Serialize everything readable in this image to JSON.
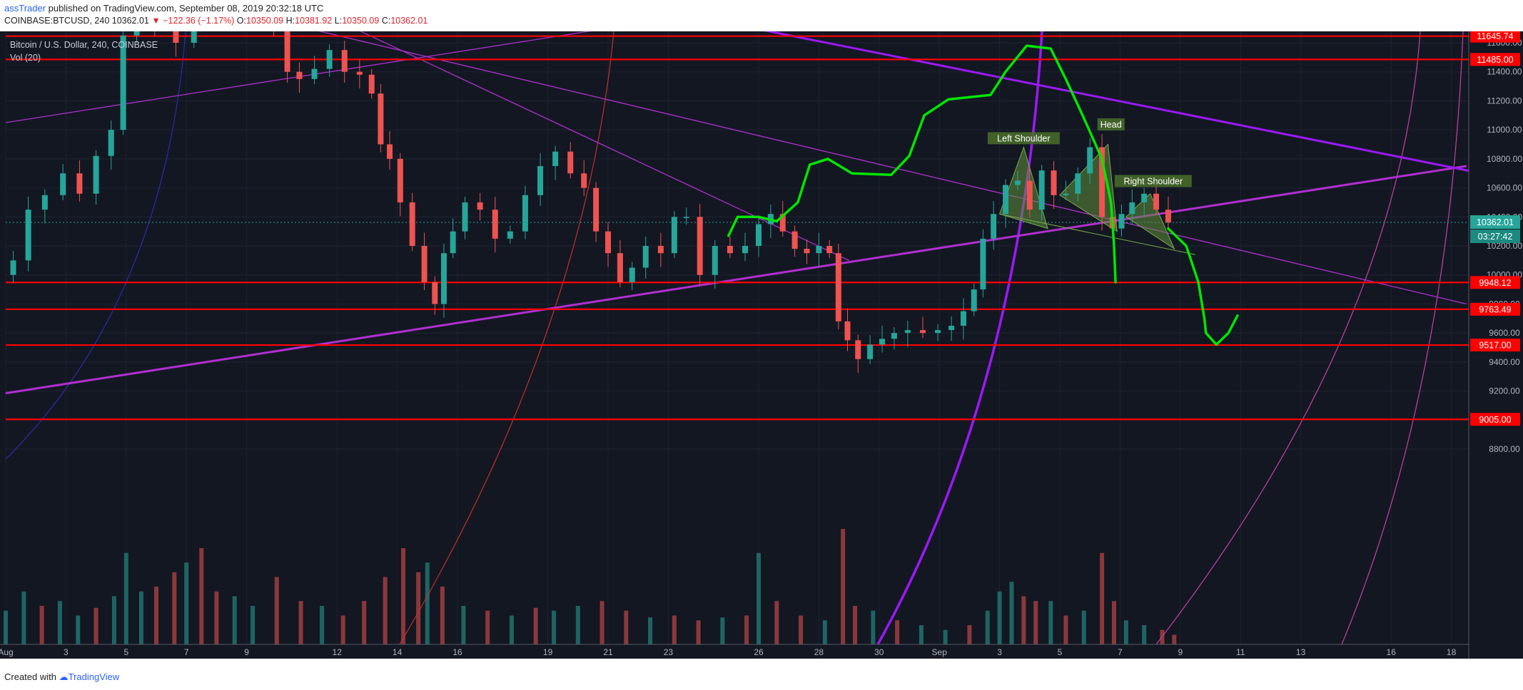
{
  "header": {
    "author": "assTrader",
    "published_text": "published on TradingView.com, September 08, 2019 20:32:18 UTC",
    "symbol_line": "COINBASE:BTCUSD, 240",
    "last": "10362.01",
    "change": "−122.36 (−1.17%)",
    "open_label": "O:",
    "open": "10350.09",
    "high_label": "H:",
    "high": "10381.92",
    "low_label": "L:",
    "low": "10350.09",
    "close_label": "C:",
    "close": "10362.01"
  },
  "legend": {
    "title": "Bitcoin / U.S. Dollar, 240, COINBASE",
    "volume": "Vol (20)"
  },
  "footer": {
    "created_with": "Created with",
    "brand": "TradingView"
  },
  "colors": {
    "background": "#131722",
    "up": "#26a69a",
    "down": "#ef5350",
    "support_line": "#ff0000",
    "trend_line": "#b02fd0",
    "arc": "#9b19f5",
    "sketch": "#00e600",
    "pattern_fill": "#5e8f3a"
  },
  "chart_data": {
    "type": "candlestick",
    "title": "Bitcoin / U.S. Dollar, 240, COINBASE",
    "x_ticks": [
      "Aug",
      "3",
      "5",
      "7",
      "9",
      "12",
      "14",
      "16",
      "19",
      "21",
      "23",
      "26",
      "28",
      "30",
      "Sep",
      "3",
      "5",
      "7",
      "9",
      "11",
      "13",
      "16",
      "18"
    ],
    "x_tick_days": [
      1,
      3,
      5,
      7,
      9,
      12,
      14,
      16,
      19,
      21,
      23,
      26,
      28,
      30,
      32,
      34,
      36,
      38,
      40,
      42,
      44,
      47,
      49
    ],
    "y_ticks": [
      8800,
      9000,
      9200,
      9400,
      9600,
      9800,
      10000,
      10200,
      10400,
      10600,
      10800,
      11000,
      11200,
      11400,
      11600
    ],
    "ylim": [
      8640,
      11640
    ],
    "current_price": {
      "value": 10362.01,
      "label": "10362.01",
      "countdown": "03:27:42"
    },
    "horizontal_levels": [
      {
        "value": 11645.74,
        "label": "11645.74"
      },
      {
        "value": 11485.0,
        "label": "11485.00"
      },
      {
        "value": 9948.12,
        "label": "9948.12"
      },
      {
        "value": 9763.49,
        "label": "9763.49"
      },
      {
        "value": 9517.0,
        "label": "9517.00"
      },
      {
        "value": 9005.0,
        "label": "9005.00"
      }
    ],
    "price_path": [
      {
        "d": 1.0,
        "p": 10000
      },
      {
        "d": 1.5,
        "p": 10100
      },
      {
        "d": 2.0,
        "p": 10450
      },
      {
        "d": 2.6,
        "p": 10550
      },
      {
        "d": 3.2,
        "p": 10700
      },
      {
        "d": 3.7,
        "p": 10560
      },
      {
        "d": 4.3,
        "p": 10820
      },
      {
        "d": 4.7,
        "p": 11000
      },
      {
        "d": 5.1,
        "p": 11650
      },
      {
        "d": 5.6,
        "p": 11900
      },
      {
        "d": 6.3,
        "p": 11720
      },
      {
        "d": 7.0,
        "p": 11600
      },
      {
        "d": 7.5,
        "p": 11950
      },
      {
        "d": 8.0,
        "p": 11800
      },
      {
        "d": 8.6,
        "p": 11950
      },
      {
        "d": 9.1,
        "p": 11900
      },
      {
        "d": 9.6,
        "p": 11960
      },
      {
        "d": 10.2,
        "p": 11700
      },
      {
        "d": 10.5,
        "p": 11400
      },
      {
        "d": 11.0,
        "p": 11350
      },
      {
        "d": 11.5,
        "p": 11420
      },
      {
        "d": 12.0,
        "p": 11550
      },
      {
        "d": 12.5,
        "p": 11400
      },
      {
        "d": 13.0,
        "p": 11380
      },
      {
        "d": 13.3,
        "p": 11250
      },
      {
        "d": 13.6,
        "p": 10900
      },
      {
        "d": 13.9,
        "p": 10800
      },
      {
        "d": 14.3,
        "p": 10500
      },
      {
        "d": 14.7,
        "p": 10200
      },
      {
        "d": 15.1,
        "p": 9950
      },
      {
        "d": 15.4,
        "p": 9800
      },
      {
        "d": 15.7,
        "p": 10150
      },
      {
        "d": 16.0,
        "p": 10300
      },
      {
        "d": 16.5,
        "p": 10500
      },
      {
        "d": 17.0,
        "p": 10450
      },
      {
        "d": 17.5,
        "p": 10250
      },
      {
        "d": 18.0,
        "p": 10300
      },
      {
        "d": 18.5,
        "p": 10550
      },
      {
        "d": 19.0,
        "p": 10750
      },
      {
        "d": 19.5,
        "p": 10850
      },
      {
        "d": 20.0,
        "p": 10700
      },
      {
        "d": 20.4,
        "p": 10600
      },
      {
        "d": 20.8,
        "p": 10300
      },
      {
        "d": 21.2,
        "p": 10150
      },
      {
        "d": 21.6,
        "p": 9950
      },
      {
        "d": 22.0,
        "p": 10050
      },
      {
        "d": 22.5,
        "p": 10200
      },
      {
        "d": 23.0,
        "p": 10150
      },
      {
        "d": 23.4,
        "p": 10400
      },
      {
        "d": 23.8,
        "p": 10400
      },
      {
        "d": 24.3,
        "p": 10000
      },
      {
        "d": 24.8,
        "p": 10200
      },
      {
        "d": 25.3,
        "p": 10150
      },
      {
        "d": 25.8,
        "p": 10200
      },
      {
        "d": 26.2,
        "p": 10350
      },
      {
        "d": 26.6,
        "p": 10420
      },
      {
        "d": 27.0,
        "p": 10300
      },
      {
        "d": 27.4,
        "p": 10180
      },
      {
        "d": 27.8,
        "p": 10150
      },
      {
        "d": 28.2,
        "p": 10200
      },
      {
        "d": 28.5,
        "p": 10150
      },
      {
        "d": 28.8,
        "p": 9680
      },
      {
        "d": 29.1,
        "p": 9550
      },
      {
        "d": 29.5,
        "p": 9420
      },
      {
        "d": 29.9,
        "p": 9520
      },
      {
        "d": 30.3,
        "p": 9560
      },
      {
        "d": 30.7,
        "p": 9600
      },
      {
        "d": 31.2,
        "p": 9620
      },
      {
        "d": 31.7,
        "p": 9600
      },
      {
        "d": 32.2,
        "p": 9620
      },
      {
        "d": 32.6,
        "p": 9650
      },
      {
        "d": 33.0,
        "p": 9750
      },
      {
        "d": 33.3,
        "p": 9900
      },
      {
        "d": 33.6,
        "p": 10250
      },
      {
        "d": 34.0,
        "p": 10420
      },
      {
        "d": 34.4,
        "p": 10620
      },
      {
        "d": 34.8,
        "p": 10650
      },
      {
        "d": 35.2,
        "p": 10450
      },
      {
        "d": 35.6,
        "p": 10720
      },
      {
        "d": 36.0,
        "p": 10550
      },
      {
        "d": 36.4,
        "p": 10560
      },
      {
        "d": 36.8,
        "p": 10700
      },
      {
        "d": 37.2,
        "p": 10880
      },
      {
        "d": 37.6,
        "p": 10400
      },
      {
        "d": 37.9,
        "p": 10320
      },
      {
        "d": 38.2,
        "p": 10420
      },
      {
        "d": 38.6,
        "p": 10500
      },
      {
        "d": 39.0,
        "p": 10560
      },
      {
        "d": 39.4,
        "p": 10450
      },
      {
        "d": 39.8,
        "p": 10362
      }
    ],
    "trend_lines": [
      {
        "from": {
          "d": 1.0,
          "p": 9185
        },
        "to": {
          "d": 49.5,
          "p": 10750
        }
      },
      {
        "from": {
          "d": 1.0,
          "p": 11050
        },
        "to": {
          "d": 21.0,
          "p": 11700
        }
      },
      {
        "from": {
          "d": 10.0,
          "p": 11750
        },
        "to": {
          "d": 49.5,
          "p": 9800
        }
      },
      {
        "from": {
          "d": 10.0,
          "p": 11950
        },
        "to": {
          "d": 29.0,
          "p": 10100
        }
      },
      {
        "from": {
          "d": 21.0,
          "p": 11900
        },
        "to": {
          "d": 50.5,
          "p": 10680
        }
      }
    ],
    "annotations": [
      {
        "text": "Left Shoulder",
        "d": 34.8,
        "p": 10935
      },
      {
        "text": "Head",
        "d": 37.7,
        "p": 11030
      },
      {
        "text": "Right Shoulder",
        "d": 39.1,
        "p": 10640
      }
    ],
    "projection_path": [
      {
        "d": 25.0,
        "p": 10270
      },
      {
        "d": 25.3,
        "p": 10400
      },
      {
        "d": 26.0,
        "p": 10400
      },
      {
        "d": 26.6,
        "p": 10370
      },
      {
        "d": 27.3,
        "p": 10500
      },
      {
        "d": 27.7,
        "p": 10760
      },
      {
        "d": 28.3,
        "p": 10800
      },
      {
        "d": 29.1,
        "p": 10700
      },
      {
        "d": 30.4,
        "p": 10690
      },
      {
        "d": 31.0,
        "p": 10820
      },
      {
        "d": 31.5,
        "p": 11100
      },
      {
        "d": 32.3,
        "p": 11210
      },
      {
        "d": 33.7,
        "p": 11240
      },
      {
        "d": 34.2,
        "p": 11400
      },
      {
        "d": 34.9,
        "p": 11580
      },
      {
        "d": 35.7,
        "p": 11560
      },
      {
        "d": 36.2,
        "p": 11350
      },
      {
        "d": 36.8,
        "p": 11080
      },
      {
        "d": 37.4,
        "p": 10800
      },
      {
        "d": 37.7,
        "p": 10500
      },
      {
        "d": 37.8,
        "p": 10200
      },
      {
        "d": 37.85,
        "p": 9950
      }
    ],
    "projection_path_2": [
      {
        "d": 39.6,
        "p": 10320
      },
      {
        "d": 40.2,
        "p": 10200
      },
      {
        "d": 40.6,
        "p": 9950
      },
      {
        "d": 40.8,
        "p": 9700
      },
      {
        "d": 40.85,
        "p": 9600
      },
      {
        "d": 41.2,
        "p": 9520
      },
      {
        "d": 41.6,
        "p": 9600
      },
      {
        "d": 41.9,
        "p": 9720
      }
    ],
    "volume": [
      {
        "d": 1.0,
        "v": 35,
        "up": true
      },
      {
        "d": 1.6,
        "v": 55,
        "up": true
      },
      {
        "d": 2.2,
        "v": 40,
        "up": false
      },
      {
        "d": 2.8,
        "v": 45,
        "up": true
      },
      {
        "d": 3.4,
        "v": 30,
        "up": true
      },
      {
        "d": 4.0,
        "v": 38,
        "up": false
      },
      {
        "d": 4.6,
        "v": 50,
        "up": true
      },
      {
        "d": 5.0,
        "v": 95,
        "up": true
      },
      {
        "d": 5.5,
        "v": 55,
        "up": true
      },
      {
        "d": 6.0,
        "v": 60,
        "up": false
      },
      {
        "d": 6.6,
        "v": 75,
        "up": false
      },
      {
        "d": 7.0,
        "v": 85,
        "up": true
      },
      {
        "d": 7.5,
        "v": 100,
        "up": false
      },
      {
        "d": 8.0,
        "v": 55,
        "up": false
      },
      {
        "d": 8.6,
        "v": 50,
        "up": true
      },
      {
        "d": 9.2,
        "v": 40,
        "up": true
      },
      {
        "d": 10.0,
        "v": 70,
        "up": false
      },
      {
        "d": 10.8,
        "v": 45,
        "up": false
      },
      {
        "d": 11.5,
        "v": 40,
        "up": true
      },
      {
        "d": 12.2,
        "v": 30,
        "up": false
      },
      {
        "d": 12.9,
        "v": 45,
        "up": false
      },
      {
        "d": 13.6,
        "v": 70,
        "up": false
      },
      {
        "d": 14.2,
        "v": 100,
        "up": false
      },
      {
        "d": 14.7,
        "v": 75,
        "up": false
      },
      {
        "d": 15.0,
        "v": 85,
        "up": true
      },
      {
        "d": 15.5,
        "v": 60,
        "up": false
      },
      {
        "d": 16.2,
        "v": 40,
        "up": true
      },
      {
        "d": 17.0,
        "v": 35,
        "up": false
      },
      {
        "d": 17.8,
        "v": 30,
        "up": true
      },
      {
        "d": 18.6,
        "v": 38,
        "up": false
      },
      {
        "d": 19.2,
        "v": 35,
        "up": true
      },
      {
        "d": 20.0,
        "v": 40,
        "up": true
      },
      {
        "d": 20.8,
        "v": 45,
        "up": false
      },
      {
        "d": 21.6,
        "v": 35,
        "up": false
      },
      {
        "d": 22.4,
        "v": 28,
        "up": true
      },
      {
        "d": 23.2,
        "v": 30,
        "up": false
      },
      {
        "d": 24.0,
        "v": 25,
        "up": false
      },
      {
        "d": 24.8,
        "v": 28,
        "up": true
      },
      {
        "d": 25.6,
        "v": 30,
        "up": false
      },
      {
        "d": 26.0,
        "v": 95,
        "up": true
      },
      {
        "d": 26.6,
        "v": 45,
        "up": false
      },
      {
        "d": 27.4,
        "v": 30,
        "up": false
      },
      {
        "d": 28.2,
        "v": 25,
        "up": true
      },
      {
        "d": 28.8,
        "v": 120,
        "up": false
      },
      {
        "d": 29.2,
        "v": 40,
        "up": false
      },
      {
        "d": 29.8,
        "v": 35,
        "up": true
      },
      {
        "d": 30.6,
        "v": 25,
        "up": false
      },
      {
        "d": 31.4,
        "v": 20,
        "up": true
      },
      {
        "d": 32.2,
        "v": 15,
        "up": true
      },
      {
        "d": 33.0,
        "v": 20,
        "up": false
      },
      {
        "d": 33.6,
        "v": 35,
        "up": true
      },
      {
        "d": 34.0,
        "v": 55,
        "up": true
      },
      {
        "d": 34.4,
        "v": 65,
        "up": true
      },
      {
        "d": 34.8,
        "v": 50,
        "up": false
      },
      {
        "d": 35.2,
        "v": 45,
        "up": false
      },
      {
        "d": 35.7,
        "v": 45,
        "up": true
      },
      {
        "d": 36.2,
        "v": 30,
        "up": false
      },
      {
        "d": 36.8,
        "v": 35,
        "up": true
      },
      {
        "d": 37.4,
        "v": 95,
        "up": false
      },
      {
        "d": 37.8,
        "v": 45,
        "up": false
      },
      {
        "d": 38.2,
        "v": 25,
        "up": true
      },
      {
        "d": 38.8,
        "v": 20,
        "up": true
      },
      {
        "d": 39.4,
        "v": 15,
        "up": false
      },
      {
        "d": 39.8,
        "v": 10,
        "up": false
      }
    ]
  }
}
